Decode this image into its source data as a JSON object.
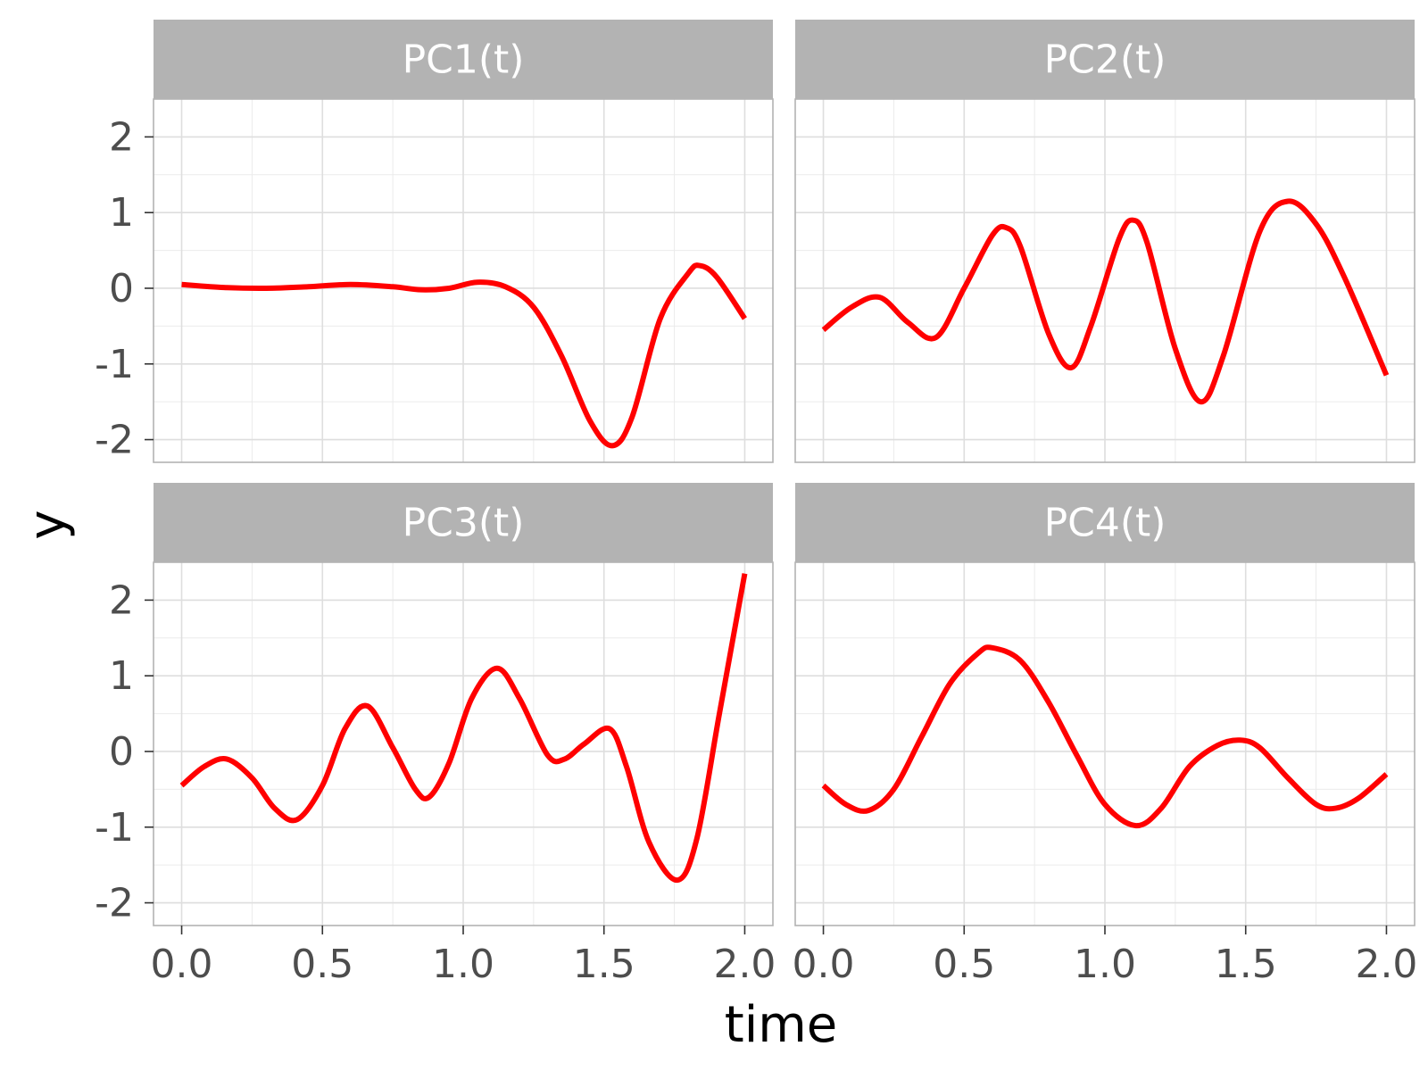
{
  "chart_data": {
    "type": "line",
    "layout": "facet-grid-2x2",
    "xlabel": "time",
    "ylabel": "y",
    "xlim": [
      -0.1,
      2.1
    ],
    "ylim": [
      -2.3,
      2.5
    ],
    "x_ticks": [
      0.0,
      0.5,
      1.0,
      1.5,
      2.0
    ],
    "x_tick_labels": [
      "0.0",
      "0.5",
      "1.0",
      "1.5",
      "2.0"
    ],
    "y_ticks": [
      2,
      1,
      0,
      -1,
      -2
    ],
    "y_tick_labels": [
      "2",
      "1",
      "0",
      "-1",
      "-2"
    ],
    "grid": true,
    "line_color": "#ff0000",
    "strip_color": "#b3b3b3",
    "panels": [
      {
        "strip": "PC1(t)",
        "x": [
          0.0,
          0.15,
          0.3,
          0.45,
          0.6,
          0.75,
          0.85,
          0.95,
          1.05,
          1.15,
          1.25,
          1.35,
          1.45,
          1.53,
          1.6,
          1.7,
          1.8,
          1.84,
          1.9,
          2.0
        ],
        "y": [
          0.05,
          0.01,
          0.0,
          0.02,
          0.05,
          0.02,
          -0.02,
          0.0,
          0.08,
          0.02,
          -0.25,
          -0.9,
          -1.75,
          -2.08,
          -1.7,
          -0.4,
          0.2,
          0.3,
          0.15,
          -0.4
        ]
      },
      {
        "strip": "PC2(t)",
        "x": [
          0.0,
          0.1,
          0.2,
          0.3,
          0.4,
          0.5,
          0.6,
          0.65,
          0.7,
          0.8,
          0.88,
          0.95,
          1.05,
          1.1,
          1.15,
          1.25,
          1.34,
          1.42,
          1.55,
          1.65,
          1.75,
          1.85,
          2.0
        ],
        "y": [
          -0.55,
          -0.25,
          -0.12,
          -0.45,
          -0.65,
          0.0,
          0.7,
          0.8,
          0.55,
          -0.6,
          -1.05,
          -0.5,
          0.65,
          0.9,
          0.6,
          -0.8,
          -1.5,
          -0.9,
          0.75,
          1.15,
          0.85,
          0.15,
          -1.15
        ]
      },
      {
        "strip": "PC3(t)",
        "x": [
          0.0,
          0.08,
          0.16,
          0.25,
          0.33,
          0.41,
          0.5,
          0.58,
          0.66,
          0.75,
          0.83,
          0.88,
          0.95,
          1.03,
          1.12,
          1.2,
          1.3,
          1.36,
          1.43,
          1.52,
          1.58,
          1.66,
          1.76,
          1.83,
          1.91,
          2.0
        ],
        "y": [
          -0.45,
          -0.2,
          -0.1,
          -0.35,
          -0.75,
          -0.9,
          -0.45,
          0.3,
          0.6,
          0.05,
          -0.5,
          -0.6,
          -0.15,
          0.7,
          1.1,
          0.7,
          -0.05,
          -0.1,
          0.1,
          0.3,
          -0.2,
          -1.2,
          -1.7,
          -1.15,
          0.5,
          2.35
        ]
      },
      {
        "strip": "PC4(t)",
        "x": [
          0.0,
          0.08,
          0.16,
          0.25,
          0.35,
          0.45,
          0.55,
          0.6,
          0.7,
          0.8,
          0.9,
          1.0,
          1.11,
          1.2,
          1.3,
          1.4,
          1.48,
          1.55,
          1.65,
          1.75,
          1.82,
          1.9,
          2.0
        ],
        "y": [
          -0.45,
          -0.7,
          -0.78,
          -0.5,
          0.2,
          0.9,
          1.3,
          1.37,
          1.2,
          0.65,
          -0.05,
          -0.7,
          -0.98,
          -0.75,
          -0.2,
          0.08,
          0.15,
          0.05,
          -0.35,
          -0.7,
          -0.75,
          -0.62,
          -0.3
        ]
      }
    ]
  }
}
